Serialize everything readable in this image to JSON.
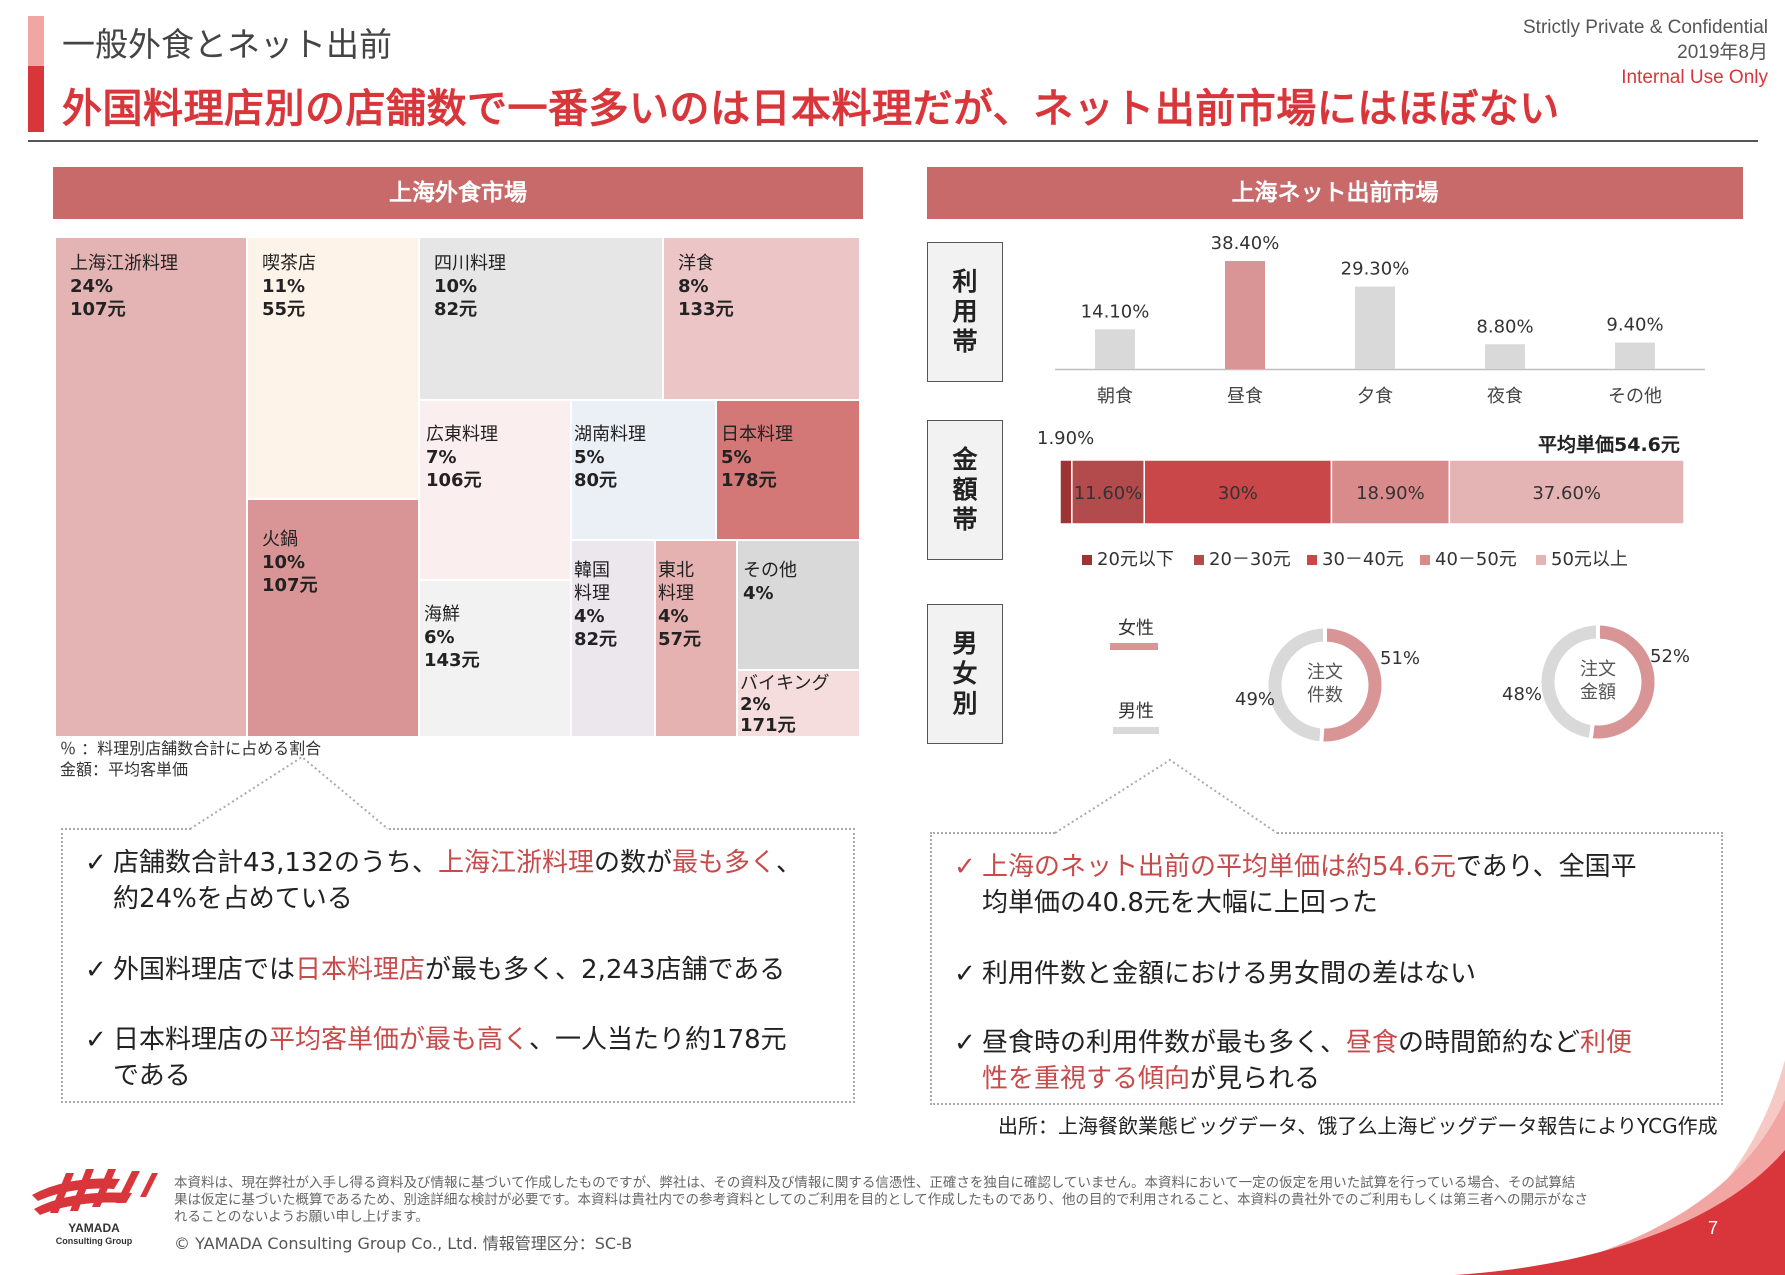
{
  "header": {
    "subtitle": "一般外食とネット出前",
    "title": "外国料理店別の店舗数で一番多いのは日本料理だが、ネット出前市場にはほぼない",
    "confidential": "Strictly Private & Confidential",
    "date": "2019年8月",
    "internal": "Internal Use Only"
  },
  "left": {
    "title": "上海外食市場",
    "treemap": [
      {
        "name": "上海江浙料理",
        "pct": "24%",
        "price": "107元",
        "color": "#e4b3b4"
      },
      {
        "name": "喫茶店",
        "pct": "11%",
        "price": "55元",
        "color": "#fef3e9"
      },
      {
        "name": "四川料理",
        "pct": "10%",
        "price": "82元",
        "color": "#e6e6e6"
      },
      {
        "name": "洋食",
        "pct": "8%",
        "price": "133元",
        "color": "#ecc5c6"
      },
      {
        "name": "火鍋",
        "pct": "10%",
        "price": "107元",
        "color": "#d99596"
      },
      {
        "name": "広東料理",
        "pct": "7%",
        "price": "106元",
        "color": "#fbeeee"
      },
      {
        "name": "湖南料理",
        "pct": "5%",
        "price": "80元",
        "color": "#ebeff6"
      },
      {
        "name": "日本料理",
        "pct": "5%",
        "price": "178元",
        "color": "#d37777"
      },
      {
        "name": "海鮮",
        "pct": "6%",
        "price": "143元",
        "color": "#f2f2f2"
      },
      {
        "name": "韓国料理",
        "name_l1": "韓国",
        "name_l2": "料理",
        "pct": "4%",
        "price": "82元",
        "color": "#ebe7ed"
      },
      {
        "name": "東北料理",
        "name_l1": "東北",
        "name_l2": "料理",
        "pct": "4%",
        "price": "57元",
        "color": "#e6b1b1"
      },
      {
        "name": "その他",
        "pct": "4%",
        "price": "",
        "color": "#d9d9d9"
      },
      {
        "name": "バイキング",
        "pct": "2%",
        "price": "171元",
        "color": "#f5dcdd"
      }
    ],
    "note1": "％ ：料理別店舗数合計に占める割合",
    "note2": "金額：平均客単価",
    "bullets": [
      {
        "t1": "店舗数合計43,132のうち、",
        "h1": "上海江浙料理",
        "t2": "の数が",
        "h2": "最も多く",
        "t3": "、",
        "t4": "約24%を占めている"
      },
      {
        "t1": "外国料理店では",
        "h1": "日本料理店",
        "t2": "が最も多く、2,243店舗である"
      },
      {
        "t1": "日本料理店の",
        "h1": "平均客単価が最も高く",
        "t2": "、一人当たり約178元",
        "t3": "である"
      }
    ]
  },
  "right": {
    "title": "上海ネット出前市場",
    "row_labels": [
      "利用帯",
      "金額帯",
      "男女別"
    ],
    "usage_chart": {
      "categories": [
        "朝食",
        "昼食",
        "夕食",
        "夜食",
        "その他"
      ],
      "values": [
        14.1,
        38.4,
        29.3,
        8.8,
        9.4
      ],
      "labels": [
        "14.10%",
        "38.40%",
        "29.30%",
        "8.80%",
        "9.40%"
      ],
      "colors": [
        "#d9d9d9",
        "#d99596",
        "#d9d9d9",
        "#d9d9d9",
        "#d9d9d9"
      ]
    },
    "amount_chart": {
      "avg_label": "平均単価54.6元",
      "segments": [
        {
          "name": "20元以下",
          "value": 1.9,
          "label": "1.90%",
          "color": "#9e3336"
        },
        {
          "name": "20－30元",
          "value": 11.6,
          "label": "11.60%",
          "color": "#b34a4c"
        },
        {
          "name": "30－40元",
          "value": 30,
          "label": "30%",
          "color": "#c94649"
        },
        {
          "name": "40－50元",
          "value": 18.9,
          "label": "18.90%",
          "color": "#d98a8b"
        },
        {
          "name": "50元以上",
          "value": 37.6,
          "label": "37.60%",
          "color": "#e4b3b4"
        }
      ]
    },
    "gender": {
      "legend_female": "女性",
      "legend_male": "男性",
      "female_color": "#d99596",
      "male_color": "#d9d9d9",
      "donuts": [
        {
          "label_l1": "注文",
          "label_l2": "件数",
          "female": 51,
          "male": 49,
          "female_label": "51%",
          "male_label": "49%"
        },
        {
          "label_l1": "注文",
          "label_l2": "金額",
          "female": 52,
          "male": 48,
          "female_label": "52%",
          "male_label": "48%"
        }
      ]
    },
    "bullets": [
      {
        "h1": "上海のネット出前の平均単価は約54.6元",
        "t1": "であり、全国平",
        "t2": "均単価の40.8元を大幅に上回った"
      },
      {
        "t1": "利用件数と金額における男女間の差はない"
      },
      {
        "t1": "昼食時の利用件数が最も多く、",
        "h1": "昼食",
        "t2": "の時間節約など",
        "h2": "利便",
        "h3": "性を重視する傾向",
        "t3": "が見られる"
      }
    ],
    "source": "出所：上海餐飲業態ビッグデータ、饿了么上海ビッグデータ報告によりYCG作成"
  },
  "footer": {
    "disclaimer_l1": "本資料は、現在弊社が入手し得る資料及び情報に基づいて作成したものですが、弊社は、その資料及び情報に関する信憑性、正確さを独自に確認していません。本資料において一定の仮定を用いた試算を行っている場合、その試算結",
    "disclaimer_l2": "果は仮定に基づいた概算であるため、別途詳細な検討が必要です。本資料は貴社内での参考資料としてのご利用を目的として作成したものであり、他の目的で利用されること、本資料の貴社外でのご利用もしくは第三者への開示がなさ",
    "disclaimer_l3": "れることのないようお願い申し上げます。",
    "copyright": "©  YAMADA Consulting  Group  Co., Ltd.     情報管理区分：SC-B",
    "logo_l1": "YAMADA",
    "logo_l2": "Consulting Group",
    "page": "7"
  }
}
